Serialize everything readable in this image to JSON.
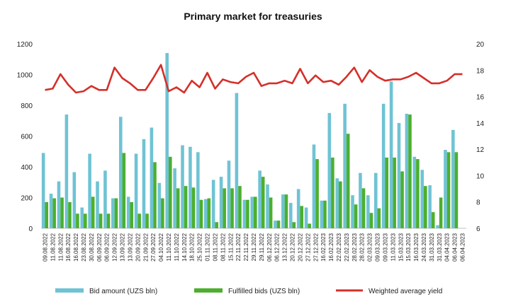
{
  "chart_data": {
    "type": "bar+line",
    "title": "Primary market for treasuries",
    "y_left": {
      "min": 0,
      "max": 1200,
      "ticks": [
        0,
        200,
        400,
        600,
        800,
        1000,
        1200
      ]
    },
    "y_right": {
      "min": 6,
      "max": 20,
      "ticks": [
        6,
        8,
        10,
        12,
        14,
        16,
        18,
        20
      ]
    },
    "categories": [
      "09.08.2022",
      "11.08.2022",
      "11.08.2022",
      "16.08.2022",
      "16.08.2022",
      "23.08.2022",
      "30.08.2022",
      "06.09.2022",
      "06.09.2022",
      "12.09.2022",
      "13.09.2022",
      "13.09.2022",
      "20.09.2022",
      "21.09.2022",
      "27.09.2022",
      "04.10.2022",
      "11.10.2022",
      "11.10.2022",
      "14.10.2022",
      "18.10.2022",
      "25.10.2022",
      "01.11.2022",
      "08.11.2022",
      "08.11.2022",
      "15.11.2022",
      "22.11.2022",
      "22.11.2022",
      "29.11.2022",
      "29.11.2022",
      "06.12.2022",
      "06.12.2022",
      "13.12.2022",
      "20.12.2022",
      "20.12.2022",
      "27.12.2022",
      "27.12.2022",
      "16.02.2023",
      "16.02.2023",
      "22.02.2023",
      "22.02.2023",
      "28.02.2023",
      "28.02.2023",
      "02.03.2023",
      "09.03.2023",
      "09.03.2023",
      "11.03.2023",
      "15.03.2023",
      "15.03.2023",
      "16.03.2023",
      "24.03.2023",
      "31.03.2023",
      "31.03.2023",
      "04.04.2023",
      "06.04.2023",
      "06.04.2023"
    ],
    "series": [
      {
        "name": "Bid amount (UZS bln)",
        "type": "bar",
        "axis": "left",
        "color": "#6fc3d4",
        "values": [
          490,
          225,
          305,
          740,
          365,
          135,
          485,
          305,
          375,
          195,
          725,
          205,
          485,
          580,
          655,
          295,
          1140,
          390,
          540,
          530,
          495,
          190,
          315,
          335,
          440,
          880,
          185,
          205,
          375,
          285,
          50,
          220,
          165,
          255,
          135,
          545,
          180,
          750,
          325,
          810,
          215,
          360,
          215,
          360,
          810,
          955,
          685,
          745,
          465,
          380,
          280,
          20,
          510,
          640,
          0
        ]
      },
      {
        "name": "Fulfilled bids (UZS bln)",
        "type": "bar",
        "axis": "left",
        "color": "#4caf2e",
        "values": [
          170,
          195,
          200,
          170,
          95,
          95,
          205,
          95,
          95,
          195,
          490,
          170,
          95,
          95,
          430,
          195,
          465,
          260,
          275,
          265,
          185,
          195,
          40,
          260,
          260,
          275,
          185,
          205,
          335,
          200,
          50,
          220,
          40,
          145,
          30,
          450,
          180,
          460,
          305,
          615,
          155,
          260,
          100,
          130,
          460,
          460,
          370,
          740,
          450,
          275,
          105,
          200,
          495,
          495,
          0
        ]
      },
      {
        "name": "Weighted average yield",
        "type": "line",
        "axis": "right",
        "color": "#d4302a",
        "values": [
          16.5,
          16.6,
          17.7,
          16.9,
          16.3,
          16.4,
          16.8,
          16.5,
          16.5,
          18.2,
          17.4,
          17.0,
          16.5,
          16.5,
          17.4,
          18.4,
          16.4,
          16.7,
          16.3,
          17.2,
          16.7,
          17.8,
          16.6,
          17.3,
          17.1,
          17.0,
          17.5,
          17.8,
          16.8,
          17.0,
          17.0,
          17.2,
          17.0,
          18.1,
          17.0,
          17.6,
          17.1,
          17.2,
          16.9,
          17.5,
          18.2,
          17.1,
          18.0,
          17.5,
          17.2,
          17.3,
          17.3,
          17.5,
          17.8,
          17.4,
          17.0,
          17.0,
          17.2,
          17.7,
          17.7
        ]
      }
    ],
    "legend_position": "bottom",
    "grid": false
  }
}
